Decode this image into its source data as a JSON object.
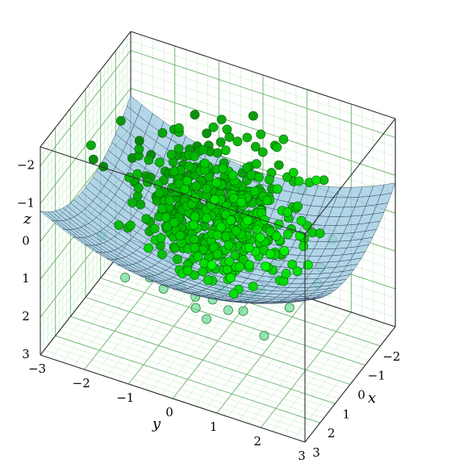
{
  "chart_data": {
    "type": "scatter3d",
    "title": "",
    "axes": {
      "x": {
        "label": "x",
        "range": [
          -3,
          3
        ],
        "ticks": [
          -2,
          -1,
          0,
          1,
          2,
          3
        ],
        "tick_labels": [
          "−2",
          "−1",
          "0",
          "1",
          "2",
          "3"
        ]
      },
      "y": {
        "label": "y",
        "range": [
          -3,
          3
        ],
        "ticks": [
          -3,
          -2,
          -1,
          0,
          1,
          2,
          3
        ],
        "tick_labels": [
          "−3",
          "−2",
          "−1",
          "0",
          "1",
          "2",
          "3"
        ]
      },
      "z": {
        "label": "z",
        "range": [
          3,
          -2.5
        ],
        "ticks": [
          -2,
          -1,
          0,
          1,
          2,
          3
        ],
        "tick_labels": [
          "−2",
          "−1",
          "0",
          "1",
          "2",
          "3"
        ],
        "direction": "inverted (−2 at top, 3 at bottom)"
      }
    },
    "grid": true,
    "surface": {
      "function": "z = 1 − 0.1·(x² + y²)",
      "color": "#9ecae1",
      "mesh_color": "#1f2f4a"
    },
    "scatter": {
      "count": 600,
      "distribution": "gaussian cloud centered near (0, 0, −0.3)",
      "marker_color": "#00ee00",
      "marker_edge": "#0b5e0b"
    },
    "colors": {
      "grid_major": "#6ab36a",
      "grid_minor": "#c9eec9",
      "box_edge": "#303030"
    }
  }
}
